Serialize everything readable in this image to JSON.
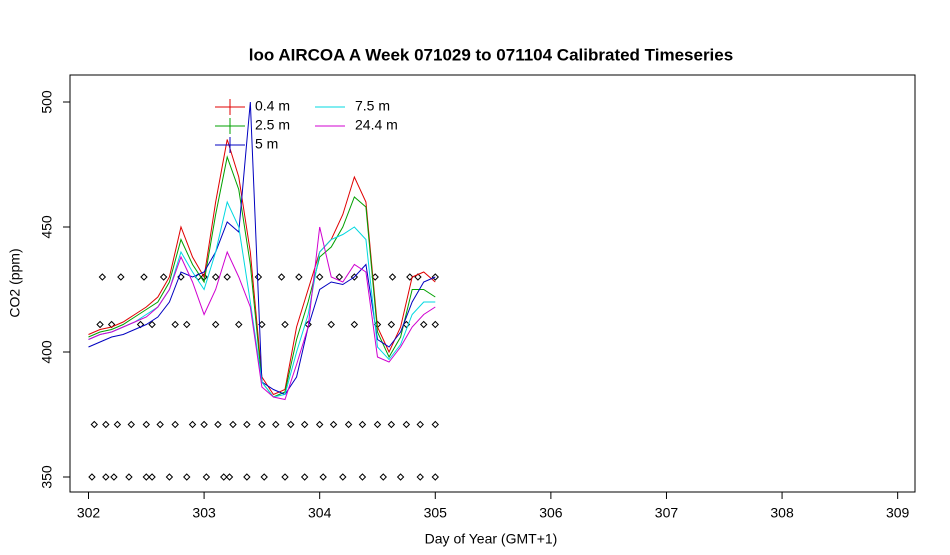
{
  "chart_data": {
    "type": "line",
    "title": "loo AIRCOA A  Week 071029 to 071104  Calibrated Timeseries",
    "x_label": "Day of Year (GMT+1)",
    "y_label": "CO2 (ppm)",
    "xlim": [
      301.84,
      309.15
    ],
    "ylim": [
      344,
      510.8
    ],
    "xticks": [
      302,
      303,
      304,
      305,
      306,
      307,
      308,
      309
    ],
    "yticks": [
      350,
      400,
      450,
      500
    ],
    "grid": false,
    "legend": "top-left",
    "x": [
      302.0,
      302.1,
      302.2,
      302.3,
      302.4,
      302.5,
      302.6,
      302.7,
      302.8,
      302.9,
      303.0,
      303.1,
      303.2,
      303.3,
      303.4,
      303.5,
      303.6,
      303.7,
      303.8,
      303.9,
      304.0,
      304.1,
      304.2,
      304.3,
      304.4,
      304.5,
      304.6,
      304.7,
      304.8,
      304.9,
      305.0
    ],
    "series": [
      {
        "name": "0.4 m",
        "color": "#e00000",
        "values": [
          407,
          409,
          410,
          412,
          415,
          418,
          422,
          430,
          450,
          438,
          430,
          460,
          485,
          470,
          440,
          390,
          383,
          385,
          410,
          425,
          440,
          445,
          455,
          470,
          460,
          410,
          400,
          410,
          430,
          432,
          428
        ]
      },
      {
        "name": "2.5 m",
        "color": "#00a000",
        "values": [
          406,
          408,
          409,
          411,
          414,
          417,
          420,
          428,
          445,
          435,
          428,
          455,
          478,
          465,
          435,
          388,
          382,
          384,
          405,
          420,
          438,
          442,
          450,
          462,
          458,
          408,
          398,
          406,
          425,
          425,
          422
        ]
      },
      {
        "name": "5 m",
        "color": "#0000c0",
        "values": [
          402,
          404,
          406,
          407,
          409,
          411,
          414,
          420,
          432,
          430,
          432,
          440,
          452,
          448,
          500,
          388,
          385,
          383,
          390,
          410,
          425,
          428,
          427,
          430,
          435,
          405,
          402,
          408,
          420,
          428,
          430
        ]
      },
      {
        "name": "7.5 m",
        "color": "#00d8e0",
        "values": [
          405,
          407,
          408,
          410,
          412,
          415,
          418,
          425,
          440,
          432,
          425,
          440,
          460,
          450,
          420,
          388,
          382,
          383,
          400,
          415,
          440,
          445,
          447,
          450,
          445,
          402,
          397,
          403,
          415,
          420,
          420
        ]
      },
      {
        "name": "24.4 m",
        "color": "#d000d0",
        "values": [
          405,
          407,
          408,
          410,
          412,
          414,
          418,
          425,
          438,
          428,
          415,
          425,
          440,
          430,
          418,
          386,
          382,
          381,
          395,
          410,
          450,
          430,
          428,
          435,
          432,
          398,
          396,
          402,
          410,
          415,
          418
        ]
      }
    ],
    "markers": [
      {
        "x": [
          302.03,
          302.15,
          302.22,
          302.35,
          302.5,
          302.55,
          302.7,
          302.85,
          303.02,
          303.17,
          303.22,
          303.37,
          303.52,
          303.7,
          303.87,
          304.03,
          304.2,
          304.37,
          304.55,
          304.7,
          304.87,
          305.0
        ],
        "y": [
          350,
          350,
          350,
          350,
          350,
          350,
          350,
          350,
          350,
          350,
          350,
          350,
          350,
          350,
          350,
          350,
          350,
          350,
          350,
          350,
          350,
          350
        ]
      },
      {
        "x": [
          302.05,
          302.15,
          302.25,
          302.37,
          302.5,
          302.62,
          302.75,
          302.9,
          303.0,
          303.12,
          303.25,
          303.37,
          303.5,
          303.62,
          303.75,
          303.87,
          304.0,
          304.12,
          304.25,
          304.37,
          304.5,
          304.62,
          304.75,
          304.87,
          305.0
        ],
        "y": [
          371,
          371,
          371,
          371,
          371,
          371,
          371,
          371,
          371,
          371,
          371,
          371,
          371,
          371,
          371,
          371,
          371,
          371,
          371,
          371,
          371,
          371,
          371,
          371,
          371
        ]
      },
      {
        "x": [
          302.1,
          302.2,
          302.45,
          302.55,
          302.75,
          302.85,
          303.1,
          303.3,
          303.5,
          303.7,
          303.9,
          304.1,
          304.3,
          304.5,
          304.62,
          304.75,
          304.9,
          305.0
        ],
        "y": [
          411,
          411,
          411,
          411,
          411,
          411,
          411,
          411,
          411,
          411,
          411,
          411,
          411,
          411,
          411,
          411,
          411,
          411
        ]
      },
      {
        "x": [
          302.12,
          302.28,
          302.48,
          302.65,
          302.8,
          302.95,
          303.0,
          303.1,
          303.2,
          303.47,
          303.67,
          303.82,
          304.0,
          304.17,
          304.3,
          304.48,
          304.63,
          304.78,
          304.85,
          305.0
        ],
        "y": [
          430,
          430,
          430,
          430,
          430,
          430,
          430,
          430,
          430,
          430,
          430,
          430,
          430,
          430,
          430,
          430,
          430,
          430,
          430,
          430
        ]
      }
    ]
  }
}
